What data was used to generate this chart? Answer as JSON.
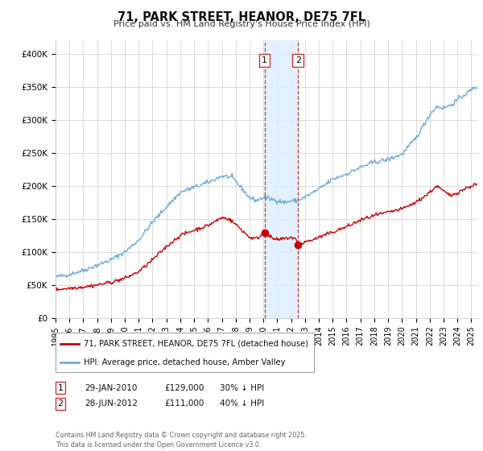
{
  "title": "71, PARK STREET, HEANOR, DE75 7FL",
  "subtitle": "Price paid vs. HM Land Registry's House Price Index (HPI)",
  "ylabel_ticks": [
    "£0",
    "£50K",
    "£100K",
    "£150K",
    "£200K",
    "£250K",
    "£300K",
    "£350K",
    "£400K"
  ],
  "ytick_values": [
    0,
    50000,
    100000,
    150000,
    200000,
    250000,
    300000,
    350000,
    400000
  ],
  "ylim": [
    0,
    420000
  ],
  "hpi_color": "#6baed6",
  "price_color": "#cc0000",
  "marker1_date": 2010.08,
  "marker2_date": 2012.5,
  "marker1_price": 129000,
  "marker2_price": 111000,
  "legend_price": "71, PARK STREET, HEANOR, DE75 7FL (detached house)",
  "legend_hpi": "HPI: Average price, detached house, Amber Valley",
  "footnote": "Contains HM Land Registry data © Crown copyright and database right 2025.\nThis data is licensed under the Open Government Licence v3.0.",
  "xlim_start": 1995.0,
  "xlim_end": 2025.5,
  "background_color": "#ffffff",
  "grid_color": "#cccccc",
  "span_color": "#ddeeff"
}
